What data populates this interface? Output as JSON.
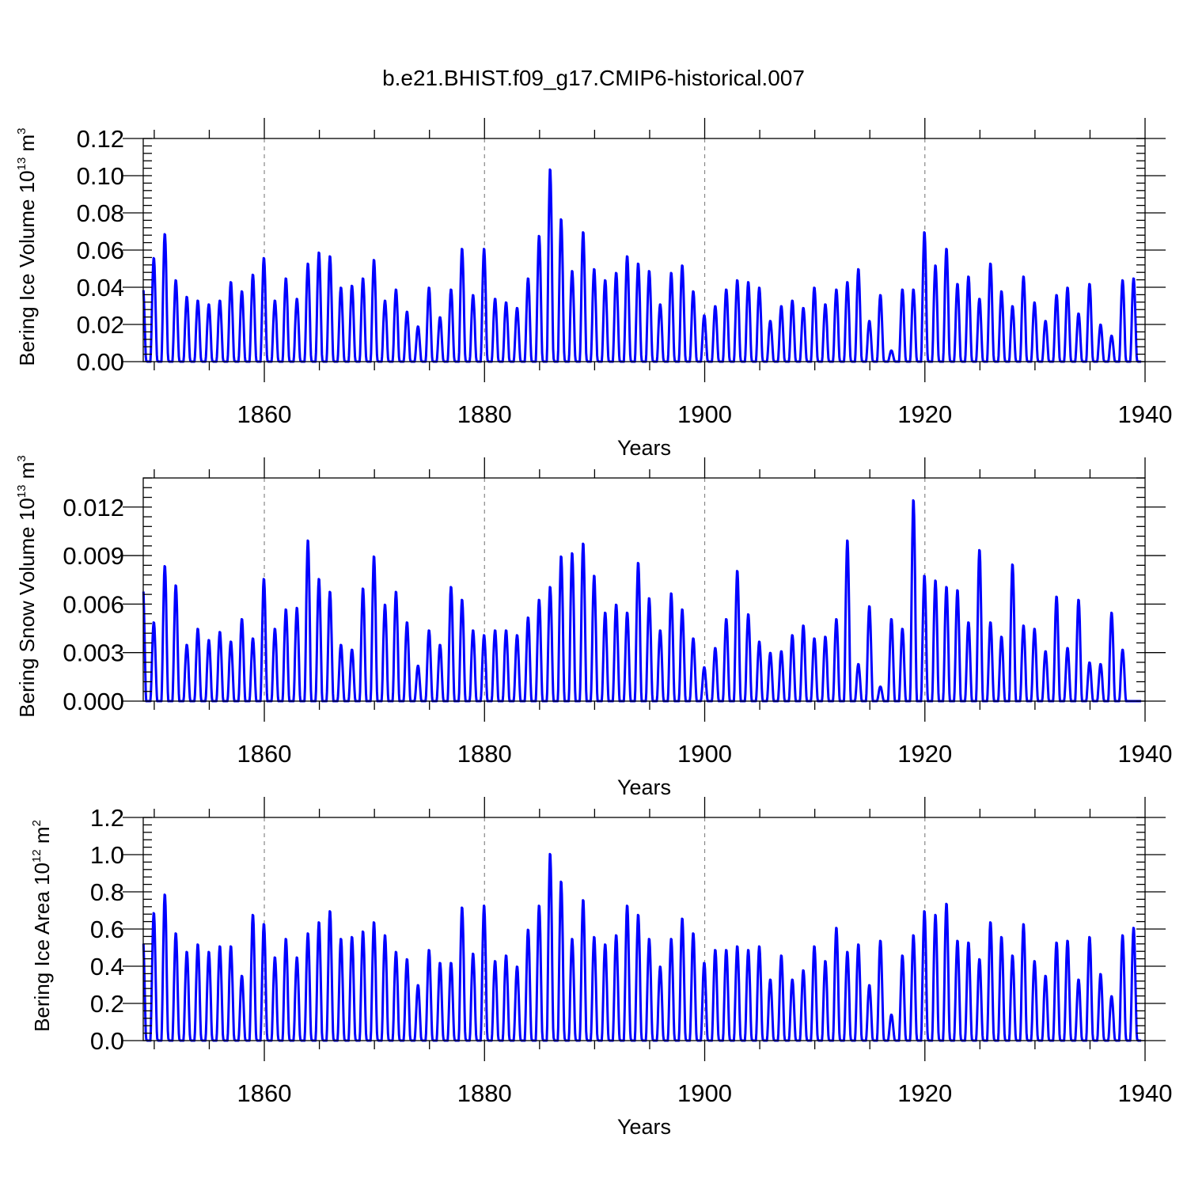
{
  "title": "b.e21.BHIST.f09_g17.CMIP6-historical.007",
  "colors": {
    "series": "#0000ff",
    "axis": "#000000",
    "grid": "#888888"
  },
  "chart_data": [
    {
      "type": "line",
      "xlabel": "Years",
      "ylabel": {
        "text": "Bering Ice Volume 10",
        "exp": "13",
        "unit": " m",
        "unit_exp": "3"
      },
      "xlim": [
        1849,
        1940
      ],
      "ylim": [
        0,
        0.12
      ],
      "xticks": [
        1860,
        1880,
        1900,
        1920,
        1940
      ],
      "xtick_labels": [
        "1860",
        "1880",
        "1900",
        "1920",
        "1940"
      ],
      "yticks": [
        0,
        0.02,
        0.04,
        0.06,
        0.08,
        0.1,
        0.12
      ],
      "ytick_labels": [
        "0.00",
        "0.02",
        "0.04",
        "0.06",
        "0.08",
        "0.10",
        "0.12"
      ],
      "grid": "vertical dashed at 1860, 1880, 1900, 1920",
      "series": [
        {
          "name": "Bering Ice Volume",
          "annual_peaks_start_year": 1849,
          "annual_peaks": [
            0.042,
            0.056,
            0.069,
            0.044,
            0.035,
            0.033,
            0.031,
            0.033,
            0.043,
            0.038,
            0.047,
            0.056,
            0.033,
            0.045,
            0.034,
            0.053,
            0.059,
            0.057,
            0.04,
            0.041,
            0.045,
            0.055,
            0.033,
            0.039,
            0.027,
            0.019,
            0.04,
            0.024,
            0.039,
            0.061,
            0.036,
            0.061,
            0.034,
            0.032,
            0.029,
            0.045,
            0.068,
            0.104,
            0.077,
            0.049,
            0.07,
            0.05,
            0.044,
            0.048,
            0.057,
            0.053,
            0.049,
            0.031,
            0.048,
            0.052,
            0.038,
            0.025,
            0.03,
            0.039,
            0.044,
            0.043,
            0.04,
            0.022,
            0.03,
            0.033,
            0.029,
            0.04,
            0.031,
            0.039,
            0.043,
            0.05,
            0.022,
            0.036,
            0.006,
            0.039,
            0.039,
            0.07,
            0.052,
            0.061,
            0.042,
            0.046,
            0.034,
            0.053,
            0.038,
            0.03,
            0.046,
            0.032,
            0.022,
            0.036,
            0.04,
            0.026,
            0.042,
            0.02,
            0.014,
            0.044,
            0.045
          ]
        }
      ]
    },
    {
      "type": "line",
      "xlabel": "Years",
      "ylabel": {
        "text": "Bering Snow Volume 10",
        "exp": "13",
        "unit": " m",
        "unit_exp": "3"
      },
      "xlim": [
        1849,
        1940
      ],
      "ylim": [
        0,
        0.0138
      ],
      "xticks": [
        1860,
        1880,
        1900,
        1920,
        1940
      ],
      "xtick_labels": [
        "1860",
        "1880",
        "1900",
        "1920",
        "1940"
      ],
      "yticks": [
        0,
        0.003,
        0.006,
        0.009,
        0.012
      ],
      "ytick_labels": [
        "0.000",
        "0.003",
        "0.006",
        "0.009",
        "0.012"
      ],
      "grid": "vertical dashed at 1860, 1880, 1900, 1920",
      "series": [
        {
          "name": "Bering Snow Volume",
          "annual_peaks_start_year": 1849,
          "annual_peaks": [
            0.0074,
            0.0049,
            0.0084,
            0.0072,
            0.0035,
            0.0045,
            0.0038,
            0.0043,
            0.0037,
            0.0051,
            0.0039,
            0.0076,
            0.0045,
            0.0057,
            0.0058,
            0.01,
            0.0076,
            0.0068,
            0.0035,
            0.0032,
            0.007,
            0.009,
            0.006,
            0.0068,
            0.0049,
            0.0022,
            0.0044,
            0.0035,
            0.0071,
            0.0063,
            0.0044,
            0.0041,
            0.0044,
            0.0044,
            0.0041,
            0.0052,
            0.0063,
            0.0071,
            0.009,
            0.0092,
            0.0098,
            0.0078,
            0.0055,
            0.006,
            0.0055,
            0.0086,
            0.0064,
            0.0044,
            0.0067,
            0.0057,
            0.0039,
            0.0021,
            0.0033,
            0.0051,
            0.0081,
            0.0054,
            0.0037,
            0.003,
            0.0031,
            0.0041,
            0.0047,
            0.0039,
            0.004,
            0.0051,
            0.01,
            0.0023,
            0.0059,
            0.0009,
            0.0051,
            0.0045,
            0.0125,
            0.0078,
            0.0075,
            0.0071,
            0.0069,
            0.0049,
            0.0094,
            0.0049,
            0.004,
            0.0085,
            0.0047,
            0.0045,
            0.0031,
            0.0065,
            0.0033,
            0.0063,
            0.0024,
            0.0023,
            0.0055,
            0.0032,
            0.0
          ]
        }
      ]
    },
    {
      "type": "line",
      "xlabel": "Years",
      "ylabel": {
        "text": "Bering Ice Area 10",
        "exp": "12",
        "unit": " m",
        "unit_exp": "2"
      },
      "xlim": [
        1849,
        1940
      ],
      "ylim": [
        0,
        1.2
      ],
      "xticks": [
        1860,
        1880,
        1900,
        1920,
        1940
      ],
      "xtick_labels": [
        "1860",
        "1880",
        "1900",
        "1920",
        "1940"
      ],
      "yticks": [
        0,
        0.2,
        0.4,
        0.6,
        0.8,
        1.0,
        1.2
      ],
      "ytick_labels": [
        "0.0",
        "0.2",
        "0.4",
        "0.6",
        "0.8",
        "1.0",
        "1.2"
      ],
      "grid": "vertical dashed at 1860, 1880, 1900, 1920",
      "series": [
        {
          "name": "Bering Ice Area",
          "annual_peaks_start_year": 1849,
          "annual_peaks": [
            0.57,
            0.69,
            0.79,
            0.58,
            0.48,
            0.52,
            0.48,
            0.51,
            0.51,
            0.35,
            0.68,
            0.63,
            0.45,
            0.55,
            0.45,
            0.58,
            0.64,
            0.7,
            0.55,
            0.56,
            0.59,
            0.64,
            0.57,
            0.48,
            0.44,
            0.3,
            0.49,
            0.42,
            0.42,
            0.72,
            0.47,
            0.73,
            0.43,
            0.46,
            0.4,
            0.6,
            0.73,
            1.01,
            0.86,
            0.55,
            0.76,
            0.56,
            0.52,
            0.57,
            0.73,
            0.68,
            0.55,
            0.4,
            0.55,
            0.66,
            0.58,
            0.42,
            0.49,
            0.49,
            0.51,
            0.49,
            0.51,
            0.33,
            0.46,
            0.33,
            0.38,
            0.51,
            0.43,
            0.61,
            0.48,
            0.52,
            0.3,
            0.54,
            0.14,
            0.46,
            0.57,
            0.7,
            0.68,
            0.74,
            0.54,
            0.53,
            0.44,
            0.64,
            0.56,
            0.46,
            0.63,
            0.43,
            0.35,
            0.53,
            0.54,
            0.33,
            0.56,
            0.36,
            0.24,
            0.57,
            0.61
          ]
        }
      ]
    }
  ]
}
